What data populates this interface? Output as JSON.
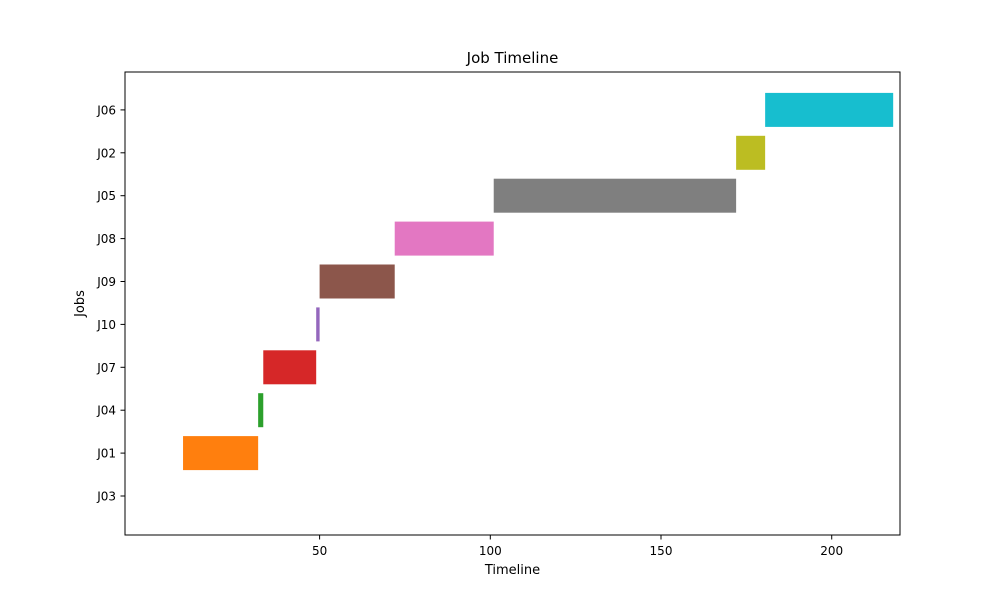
{
  "chart_data": {
    "type": "bar",
    "orientation": "horizontal",
    "title": "Job Timeline",
    "xlabel": "Timeline",
    "ylabel": "Jobs",
    "xlim": [
      -7,
      220
    ],
    "x_ticks": [
      50,
      100,
      150,
      200
    ],
    "grid": false,
    "legend": "none",
    "categories": [
      "J03",
      "J01",
      "J04",
      "J07",
      "J10",
      "J09",
      "J08",
      "J05",
      "J02",
      "J06"
    ],
    "bars": [
      {
        "job": "J03",
        "start": 10,
        "end": 10,
        "color": "#1f77b4"
      },
      {
        "job": "J01",
        "start": 10,
        "end": 32,
        "color": "#ff7f0e"
      },
      {
        "job": "J04",
        "start": 32,
        "end": 33.5,
        "color": "#2ca02c"
      },
      {
        "job": "J07",
        "start": 33.5,
        "end": 49,
        "color": "#d62728"
      },
      {
        "job": "J10",
        "start": 49,
        "end": 50,
        "color": "#9467bd"
      },
      {
        "job": "J09",
        "start": 50,
        "end": 72,
        "color": "#8c564b"
      },
      {
        "job": "J08",
        "start": 72,
        "end": 101,
        "color": "#e377c2"
      },
      {
        "job": "J05",
        "start": 101,
        "end": 172,
        "color": "#7f7f7f"
      },
      {
        "job": "J02",
        "start": 172,
        "end": 180.5,
        "color": "#bcbd22"
      },
      {
        "job": "J06",
        "start": 180.5,
        "end": 218,
        "color": "#17becf"
      }
    ]
  }
}
